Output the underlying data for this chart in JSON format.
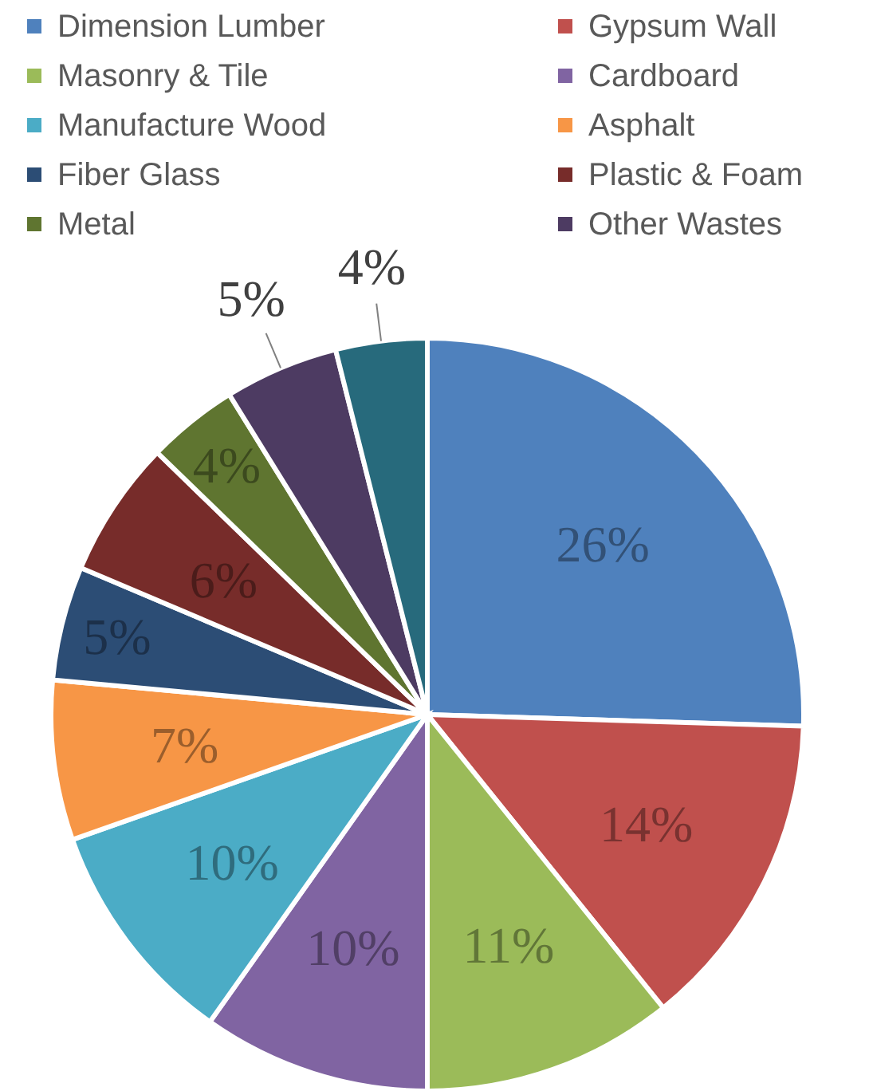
{
  "chart_data": {
    "type": "pie",
    "categories": [
      "Dimension Lumber",
      "Gypsum Wall",
      "Masonry & Tile",
      "Cardboard",
      "Manufacture Wood",
      "Asphalt",
      "Fiber Glass",
      "Plastic & Foam",
      "Metal",
      "Other Wastes",
      null
    ],
    "values": [
      26,
      14,
      11,
      10,
      10,
      7,
      5,
      6,
      4,
      5,
      4
    ],
    "colors": [
      "#4f81bd",
      "#c0504d",
      "#9bbb59",
      "#8064a2",
      "#4bacc6",
      "#f79646",
      "#2c4d75",
      "#772c2a",
      "#5f7530",
      "#4d3b62",
      "#276a7c"
    ],
    "value_labels": [
      "26%",
      "14%",
      "11%",
      "10%",
      "10%",
      "7%",
      "5%",
      "6%",
      "4%",
      "5%",
      "4%"
    ],
    "legend": "top"
  }
}
